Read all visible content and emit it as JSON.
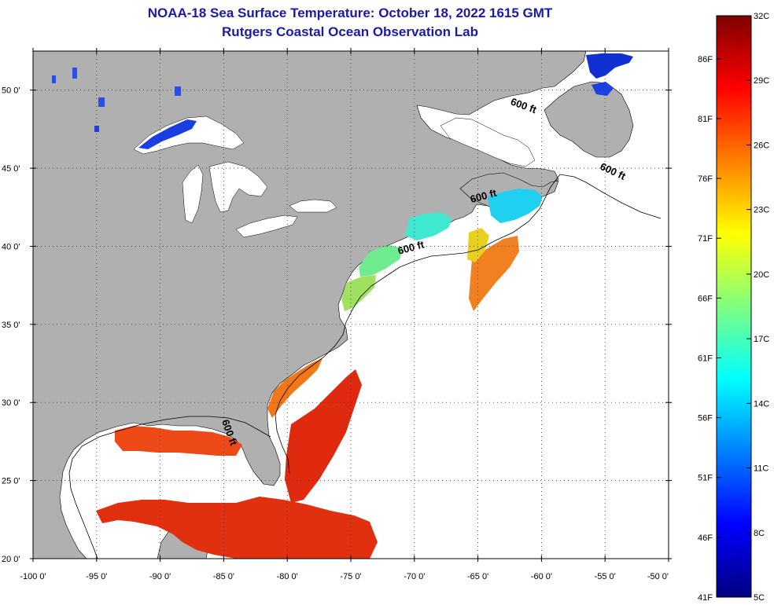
{
  "header": {
    "title": "NOAA-18 Sea Surface Temperature:  October 18, 2022 1615 GMT",
    "subtitle": "Rutgers Coastal Ocean Observation Lab"
  },
  "map": {
    "lon_range": [
      -100,
      -50
    ],
    "lat_range": [
      20,
      52.5
    ],
    "lon_ticks": [
      {
        "lon": -100,
        "label": "-100 0'"
      },
      {
        "lon": -95,
        "label": "-95 0'"
      },
      {
        "lon": -90,
        "label": "-90 0'"
      },
      {
        "lon": -85,
        "label": "-85 0'"
      },
      {
        "lon": -80,
        "label": "-80 0'"
      },
      {
        "lon": -75,
        "label": "-75 0'"
      },
      {
        "lon": -70,
        "label": "-70 0'"
      },
      {
        "lon": -65,
        "label": "-65 0'"
      },
      {
        "lon": -60,
        "label": "-60 0'"
      },
      {
        "lon": -55,
        "label": "-55 0'"
      },
      {
        "lon": -50,
        "label": "-50 0'"
      }
    ],
    "lat_ticks": [
      {
        "lat": 20,
        "label": "20 0'"
      },
      {
        "lat": 25,
        "label": "25 0'"
      },
      {
        "lat": 30,
        "label": "30 0'"
      },
      {
        "lat": 35,
        "label": "35 0'"
      },
      {
        "lat": 40,
        "label": "40 0'"
      },
      {
        "lat": 45,
        "label": "45 0'"
      },
      {
        "lat": 50,
        "label": "50 0'"
      }
    ],
    "contour_labels": [
      {
        "text": "600 ft",
        "lon": -61.5,
        "lat": 48.8,
        "rotate": 20
      },
      {
        "text": "600 ft",
        "lon": -54.5,
        "lat": 44.6,
        "rotate": 25
      },
      {
        "text": "600 ft",
        "lon": -64.5,
        "lat": 43.0,
        "rotate": -15
      },
      {
        "text": "600 ft",
        "lon": -70.2,
        "lat": 39.7,
        "rotate": -15
      },
      {
        "text": "600 ft",
        "lon": -84.8,
        "lat": 28.0,
        "rotate": 70
      }
    ],
    "colors": {
      "land": "#b0b0b0",
      "ocean_no_data": "#ffffff",
      "grid": "#000000"
    }
  },
  "colorbar": {
    "celsius_labels": [
      {
        "value": 32,
        "label": "32C"
      },
      {
        "value": 29,
        "label": "29C"
      },
      {
        "value": 26,
        "label": "26C"
      },
      {
        "value": 23,
        "label": "23C"
      },
      {
        "value": 20,
        "label": "20C"
      },
      {
        "value": 17,
        "label": "17C"
      },
      {
        "value": 14,
        "label": "14C"
      },
      {
        "value": 11,
        "label": "11C"
      },
      {
        "value": 8,
        "label": "8C"
      },
      {
        "value": 5,
        "label": "5C"
      }
    ],
    "fahrenheit_labels": [
      {
        "value": 86,
        "label": "86F"
      },
      {
        "value": 81,
        "label": "81F"
      },
      {
        "value": 76,
        "label": "76F"
      },
      {
        "value": 71,
        "label": "71F"
      },
      {
        "value": 66,
        "label": "66F"
      },
      {
        "value": 61,
        "label": "61F"
      },
      {
        "value": 56,
        "label": "56F"
      },
      {
        "value": 51,
        "label": "51F"
      },
      {
        "value": 46,
        "label": "46F"
      },
      {
        "value": 41,
        "label": "41F"
      }
    ],
    "range_c": [
      5,
      32
    ],
    "palette": [
      "#00007f",
      "#0000ff",
      "#0080ff",
      "#00ffff",
      "#80ff80",
      "#ffff00",
      "#ff8000",
      "#ff0000",
      "#7f0000"
    ]
  }
}
